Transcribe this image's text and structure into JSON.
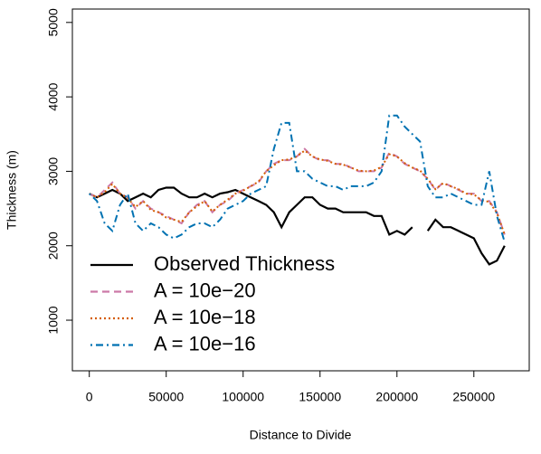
{
  "chart_data": {
    "type": "line",
    "xlabel": "Distance to Divide",
    "ylabel": "Thickness (m)",
    "x": [
      0,
      5000,
      10000,
      15000,
      20000,
      25000,
      30000,
      35000,
      40000,
      45000,
      50000,
      55000,
      60000,
      65000,
      70000,
      75000,
      80000,
      85000,
      90000,
      95000,
      100000,
      105000,
      110000,
      115000,
      120000,
      125000,
      130000,
      135000,
      140000,
      145000,
      150000,
      155000,
      160000,
      165000,
      170000,
      175000,
      180000,
      185000,
      190000,
      195000,
      200000,
      205000,
      210000,
      215000,
      220000,
      225000,
      230000,
      235000,
      240000,
      245000,
      250000,
      255000,
      260000,
      265000,
      270000
    ],
    "series": [
      {
        "name": "Observed Thickness",
        "color": "#000000",
        "linestyle": "solid",
        "values": [
          2700,
          2650,
          2700,
          2750,
          2700,
          2600,
          2650,
          2700,
          2650,
          2750,
          2780,
          2780,
          2700,
          2650,
          2650,
          2700,
          2650,
          2700,
          2720,
          2750,
          2700,
          2650,
          2600,
          2550,
          2450,
          2250,
          2450,
          2550,
          2650,
          2650,
          2550,
          2500,
          2500,
          2450,
          2450,
          2450,
          2450,
          2400,
          2400,
          2150,
          2200,
          2150,
          2250,
          null,
          2200,
          2350,
          2250,
          2250,
          2200,
          2150,
          2100,
          1900,
          1750,
          1800,
          2000
        ]
      },
      {
        "name": "A = 10e−20",
        "color": "#cc79a7",
        "linestyle": "dashed",
        "values": [
          2700,
          2650,
          2750,
          2850,
          2700,
          2650,
          2500,
          2600,
          2500,
          2450,
          2400,
          2350,
          2300,
          2450,
          2550,
          2600,
          2450,
          2550,
          2600,
          2700,
          2750,
          2800,
          2850,
          3000,
          3100,
          3150,
          3150,
          3200,
          3300,
          3200,
          3150,
          3150,
          3100,
          3100,
          3050,
          3000,
          3000,
          3000,
          3050,
          3250,
          3200,
          3100,
          3050,
          3000,
          2900,
          2750,
          2850,
          2800,
          2750,
          2700,
          2700,
          2600,
          2600,
          2450,
          2150
        ]
      },
      {
        "name": "A = 10e−18",
        "color": "#d55e00",
        "linestyle": "dotted",
        "values": [
          2700,
          2650,
          2720,
          2830,
          2700,
          2640,
          2520,
          2600,
          2480,
          2450,
          2380,
          2350,
          2320,
          2450,
          2530,
          2600,
          2460,
          2550,
          2620,
          2700,
          2740,
          2800,
          2860,
          3000,
          3080,
          3150,
          3160,
          3200,
          3280,
          3200,
          3160,
          3140,
          3100,
          3090,
          3050,
          3010,
          3000,
          3010,
          3060,
          3230,
          3200,
          3110,
          3050,
          3010,
          2900,
          2760,
          2840,
          2800,
          2760,
          2700,
          2690,
          2610,
          2590,
          2440,
          2150
        ]
      },
      {
        "name": "A = 10e−16",
        "color": "#0072b2",
        "linestyle": "dotdash",
        "values": [
          2700,
          2600,
          2300,
          2200,
          2550,
          2700,
          2300,
          2200,
          2300,
          2250,
          2150,
          2100,
          2150,
          2250,
          2300,
          2300,
          2250,
          2350,
          2500,
          2550,
          2600,
          2700,
          2750,
          2800,
          3300,
          3650,
          3650,
          3000,
          3000,
          2900,
          2850,
          2800,
          2800,
          2750,
          2800,
          2800,
          2800,
          2850,
          3000,
          3750,
          3750,
          3600,
          3500,
          3400,
          2800,
          2650,
          2650,
          2700,
          2650,
          2600,
          2550,
          2550,
          3000,
          2400,
          2050
        ]
      }
    ],
    "xlim": [
      -11000,
      286000
    ],
    "xticks": [
      0,
      50000,
      100000,
      150000,
      200000,
      250000
    ],
    "ylim": [
      320,
      5180
    ],
    "yticks": [
      1000,
      2000,
      3000,
      4000,
      5000
    ],
    "grid": false,
    "legend": "bottomleft"
  }
}
